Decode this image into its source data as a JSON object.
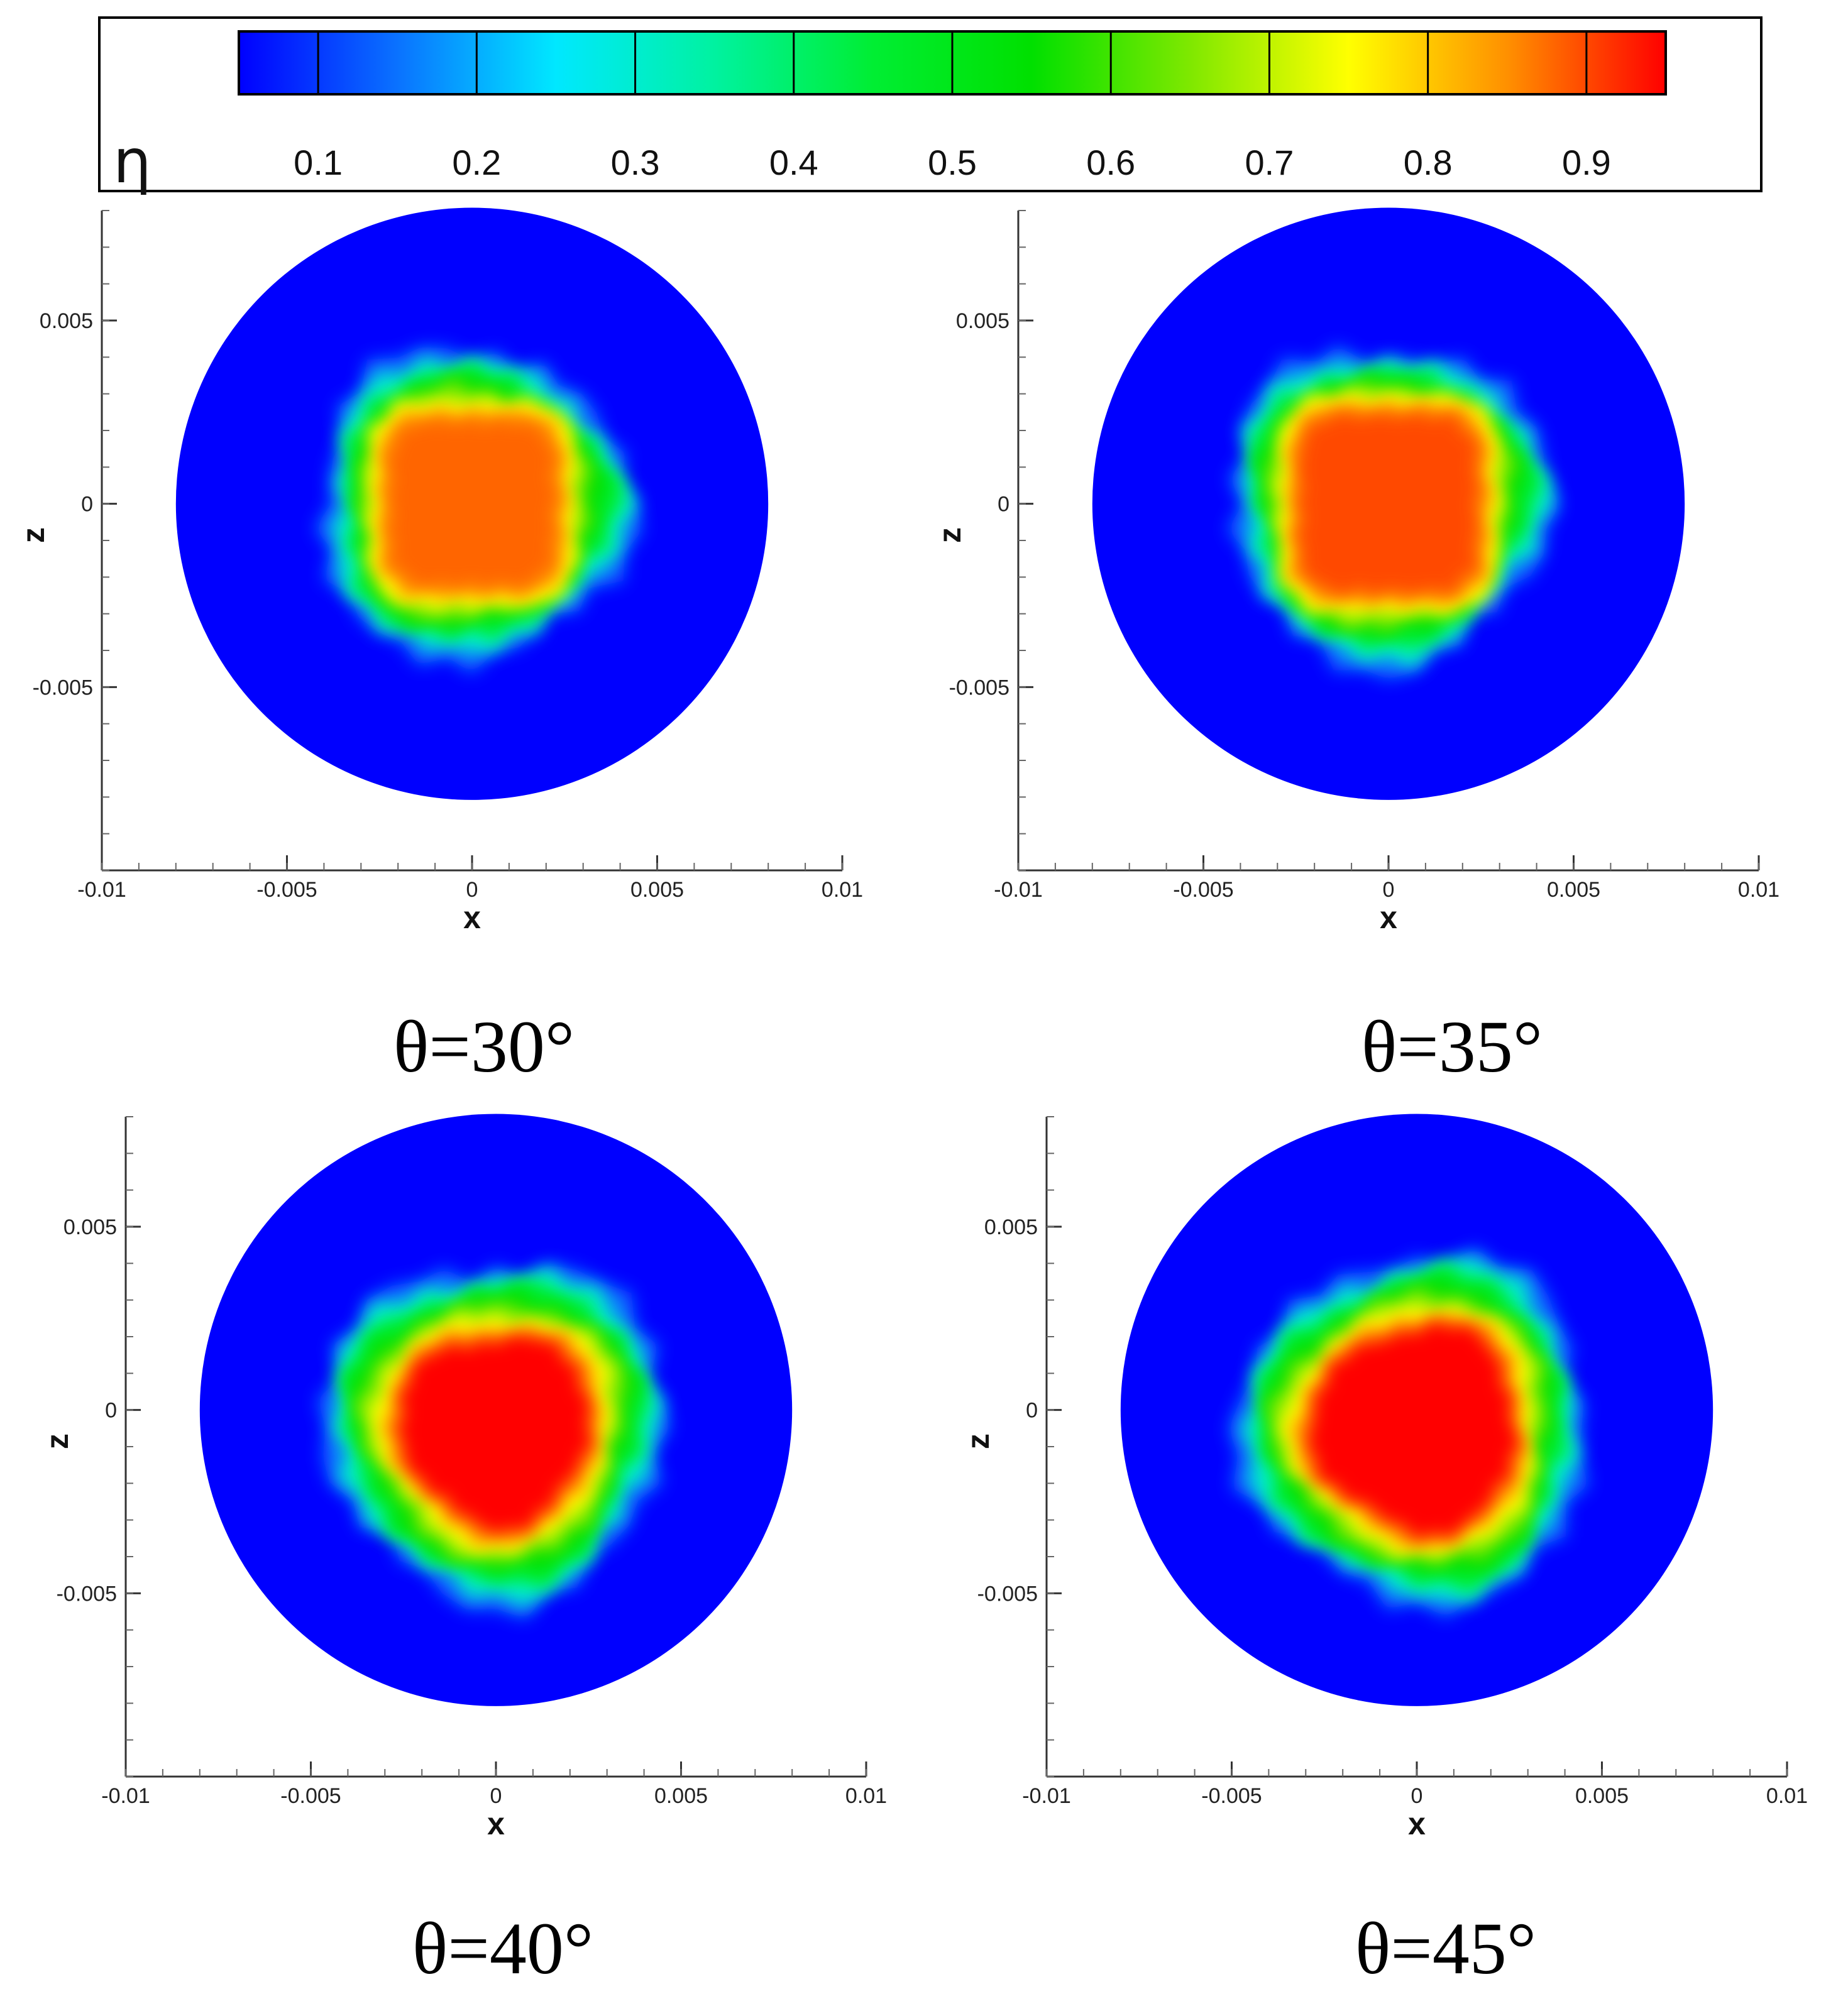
{
  "colorbar": {
    "title": "η",
    "ticks": [
      0.1,
      0.2,
      0.3,
      0.4,
      0.5,
      0.6,
      0.7,
      0.8,
      0.9
    ],
    "tick_labels": [
      "0.1",
      "0.2",
      "0.3",
      "0.4",
      "0.5",
      "0.6",
      "0.7",
      "0.8",
      "0.9"
    ],
    "range": [
      0.05,
      0.95
    ],
    "colors": [
      "#0000ff",
      "#0a72ff",
      "#00e8ff",
      "#00f2a0",
      "#00ee33",
      "#00e000",
      "#7fe800",
      "#ffff00",
      "#ff9000",
      "#ff0000"
    ]
  },
  "chart_data": [
    {
      "type": "heatmap",
      "caption": "θ=30°",
      "xlabel": "x",
      "ylabel": "z",
      "xlim": [
        -0.01,
        0.01
      ],
      "ylim": [
        -0.01,
        0.008
      ],
      "x_ticks": [
        "-0.01",
        "-0.005",
        "0",
        "0.005",
        "0.01"
      ],
      "y_ticks": [
        "0.005",
        "0",
        "-0.005"
      ],
      "domain_radius": 0.008,
      "background_value": 0.05,
      "core_value": 0.88,
      "core_center": [
        0.0,
        0.0
      ],
      "core_shape": "square",
      "core_half_width": 0.0022,
      "outer_extent": 0.0042
    },
    {
      "type": "heatmap",
      "caption": "θ=35°",
      "xlabel": "x",
      "ylabel": "z",
      "xlim": [
        -0.01,
        0.01
      ],
      "ylim": [
        -0.01,
        0.008
      ],
      "x_ticks": [
        "-0.01",
        "-0.005",
        "0",
        "0.005",
        "0.01"
      ],
      "y_ticks": [
        "0.005",
        "0",
        "-0.005"
      ],
      "domain_radius": 0.008,
      "background_value": 0.05,
      "core_value": 0.9,
      "core_center": [
        0.0,
        0.0
      ],
      "core_shape": "square",
      "core_half_width": 0.0024,
      "outer_extent": 0.0043
    },
    {
      "type": "heatmap",
      "caption": "θ=40°",
      "xlabel": "x",
      "ylabel": "z",
      "xlim": [
        -0.01,
        0.01
      ],
      "ylim": [
        -0.01,
        0.008
      ],
      "x_ticks": [
        "-0.01",
        "-0.005",
        "0",
        "0.005",
        "0.01"
      ],
      "y_ticks": [
        "0.005",
        "0",
        "-0.005"
      ],
      "domain_radius": 0.008,
      "background_value": 0.05,
      "core_value": 0.95,
      "core_center": [
        0.0,
        -0.0005
      ],
      "core_shape": "rounded",
      "core_half_width": 0.0026,
      "outer_extent": 0.0046
    },
    {
      "type": "heatmap",
      "caption": "θ=45°",
      "xlabel": "x",
      "ylabel": "z",
      "xlim": [
        -0.01,
        0.01
      ],
      "ylim": [
        -0.01,
        0.008
      ],
      "x_ticks": [
        "-0.01",
        "-0.005",
        "0",
        "0.005",
        "0.01"
      ],
      "y_ticks": [
        "0.005",
        "0",
        "-0.005"
      ],
      "domain_radius": 0.008,
      "background_value": 0.05,
      "core_value": 0.97,
      "core_center": [
        0.0,
        -0.0005
      ],
      "core_shape": "rounded",
      "core_half_width": 0.0028,
      "outer_extent": 0.0047
    }
  ]
}
